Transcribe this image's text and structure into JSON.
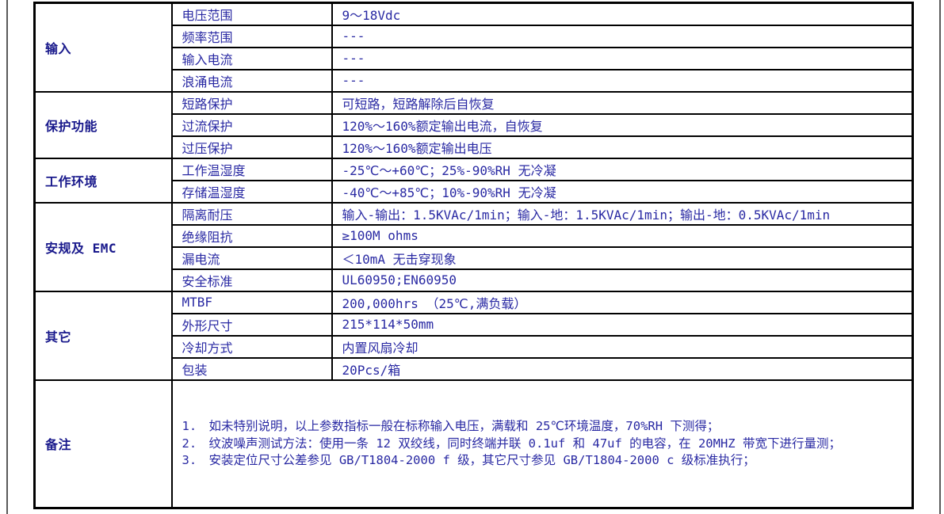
{
  "colors": {
    "text_regular": "#2929a3",
    "text_bold_label": "#19198c",
    "table_border": "#000000",
    "page_rule": "#5a5a5a",
    "background": "#ffffff"
  },
  "table": {
    "groups": [
      {
        "label": "输入",
        "rows": [
          {
            "param": "电压范围",
            "value": "9～18Vdc"
          },
          {
            "param": "频率范围",
            "value": "---"
          },
          {
            "param": "输入电流",
            "value": "---"
          },
          {
            "param": "浪涌电流",
            "value": "---"
          }
        ]
      },
      {
        "label": "保护功能",
        "rows": [
          {
            "param": "短路保护",
            "value": "可短路，短路解除后自恢复"
          },
          {
            "param": "过流保护",
            "value": "120%～160%额定输出电流，自恢复"
          },
          {
            "param": "过压保护",
            "value": "120%～160%额定输出电压"
          }
        ]
      },
      {
        "label": "工作环境",
        "rows": [
          {
            "param": "工作温湿度",
            "value": "-25℃～+60℃；25%-90%RH 无冷凝"
          },
          {
            "param": "存储温湿度",
            "value": "-40℃～+85℃；10%-90%RH 无冷凝"
          }
        ]
      },
      {
        "label": "安规及 EMC",
        "rows": [
          {
            "param": "隔离耐压",
            "value": "输入-输出：1.5KVAc/1min；输入-地：1.5KVAc/1min；输出-地：0.5KVAc/1min"
          },
          {
            "param": "绝缘阻抗",
            "value": "≥100M ohms"
          },
          {
            "param": "漏电流",
            "value": "＜10mA  无击穿现象"
          },
          {
            "param": "安全标准",
            "value": "UL60950;EN60950"
          }
        ]
      },
      {
        "label": "其它",
        "rows": [
          {
            "param": "MTBF",
            "value": "200,000hrs （25℃,满负载）"
          },
          {
            "param": "外形尺寸",
            "value": "215*114*50mm"
          },
          {
            "param": "冷却方式",
            "value": "内置风扇冷却"
          },
          {
            "param": "包装",
            "value": "20Pcs/箱"
          }
        ]
      }
    ],
    "notes": {
      "label": "备注",
      "items": [
        {
          "num": "1.",
          "text": "如未特别说明，以上参数指标一般在标称输入电压，满载和 25℃环境温度，70%RH 下测得；"
        },
        {
          "num": "2.",
          "text": "纹波噪声测试方法：使用一条 12 双绞线，同时终端并联 0.1uf 和 47uf 的电容，在 20MHZ 带宽下进行量测；"
        },
        {
          "num": "3.",
          "text": "安装定位尺寸公差参见 GB/T1804-2000 f 级，其它尺寸参见 GB/T1804-2000 c 级标准执行；"
        }
      ]
    }
  }
}
